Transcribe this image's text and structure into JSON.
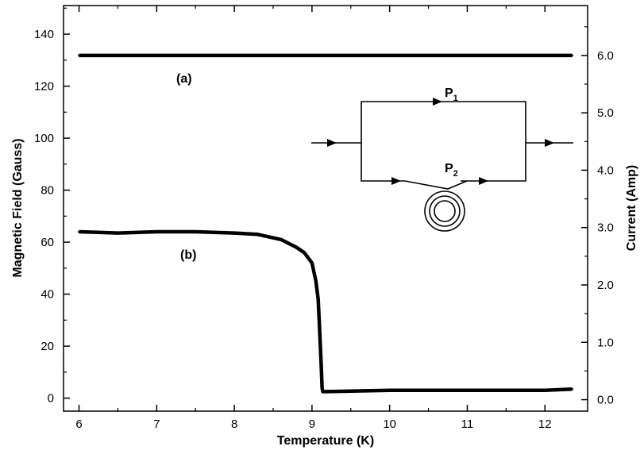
{
  "chart_data": {
    "type": "line",
    "xlabel": "Temperature (K)",
    "ylabel": "Magnetic Field (Gauss)",
    "y2label": "Current (Amp)",
    "xlim": [
      5.8,
      12.55
    ],
    "ylim": [
      -5,
      151
    ],
    "y2lim": [
      -0.2,
      6.87
    ],
    "x_ticks": [
      "6",
      "7",
      "8",
      "9",
      "10",
      "11",
      "12"
    ],
    "y_ticks": [
      "0",
      "20",
      "40",
      "60",
      "80",
      "100",
      "120",
      "140"
    ],
    "y2_ticks": [
      "0.0",
      "1.0",
      "2.0",
      "3.0",
      "4.0",
      "5.0",
      "6.0"
    ],
    "series": [
      {
        "label": "(a)",
        "axis": "right",
        "x": [
          6.0,
          6.5,
          7.0,
          7.5,
          8.0,
          8.5,
          9.0,
          9.5,
          10.0,
          10.5,
          11.0,
          11.5,
          12.0,
          12.35
        ],
        "values": [
          6.0,
          6.0,
          6.0,
          6.0,
          6.0,
          6.0,
          6.0,
          6.0,
          6.0,
          6.0,
          6.0,
          6.0,
          6.0,
          6.0
        ]
      },
      {
        "label": "(b)",
        "axis": "left",
        "x": [
          6.0,
          6.5,
          7.0,
          7.5,
          8.0,
          8.3,
          8.6,
          8.8,
          8.9,
          9.0,
          9.05,
          9.08,
          9.1,
          9.12,
          9.13,
          9.14,
          9.2,
          9.5,
          10.0,
          10.5,
          11.0,
          11.5,
          12.0,
          12.35
        ],
        "values": [
          64,
          63.5,
          64,
          64,
          63.5,
          63,
          61,
          58,
          56,
          52,
          45,
          38,
          25,
          12,
          4,
          2.5,
          2.5,
          2.7,
          3,
          3,
          3,
          3,
          3,
          3.5
        ]
      }
    ],
    "inset_circuit": {
      "branch_labels": [
        {
          "main": "P",
          "sub": "1"
        },
        {
          "main": "P",
          "sub": "2"
        }
      ]
    }
  }
}
